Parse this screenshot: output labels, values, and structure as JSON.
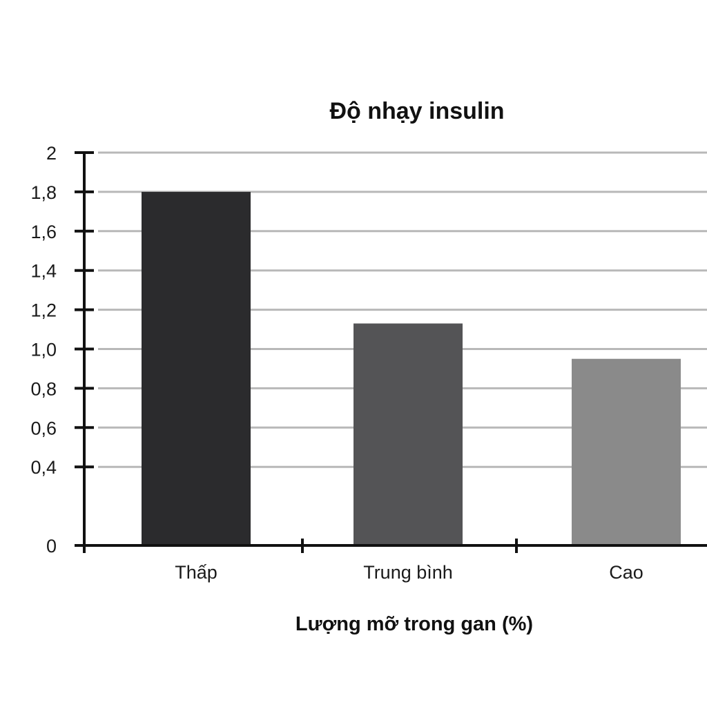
{
  "chart_data": {
    "type": "bar",
    "title": "Độ nhạy insulin",
    "xlabel": "Lượng mỡ trong gan (%)",
    "ylabel": "",
    "categories": [
      "Thấp",
      "Trung bình",
      "Cao"
    ],
    "values": [
      1.8,
      1.13,
      0.95
    ],
    "bar_colors": [
      "#2b2b2d",
      "#545456",
      "#8a8a8a"
    ],
    "ylim": [
      0,
      2
    ],
    "y_ticks": [
      {
        "value": 0,
        "label": "0"
      },
      {
        "value": 0.4,
        "label": "0,4"
      },
      {
        "value": 0.6,
        "label": "0,6"
      },
      {
        "value": 0.8,
        "label": "0,8"
      },
      {
        "value": 1.0,
        "label": "1,0"
      },
      {
        "value": 1.2,
        "label": "1,2"
      },
      {
        "value": 1.4,
        "label": "1,4"
      },
      {
        "value": 1.6,
        "label": "1,6"
      },
      {
        "value": 1.8,
        "label": "1,8"
      },
      {
        "value": 2,
        "label": "2"
      }
    ],
    "grid": true,
    "legend": "none"
  }
}
